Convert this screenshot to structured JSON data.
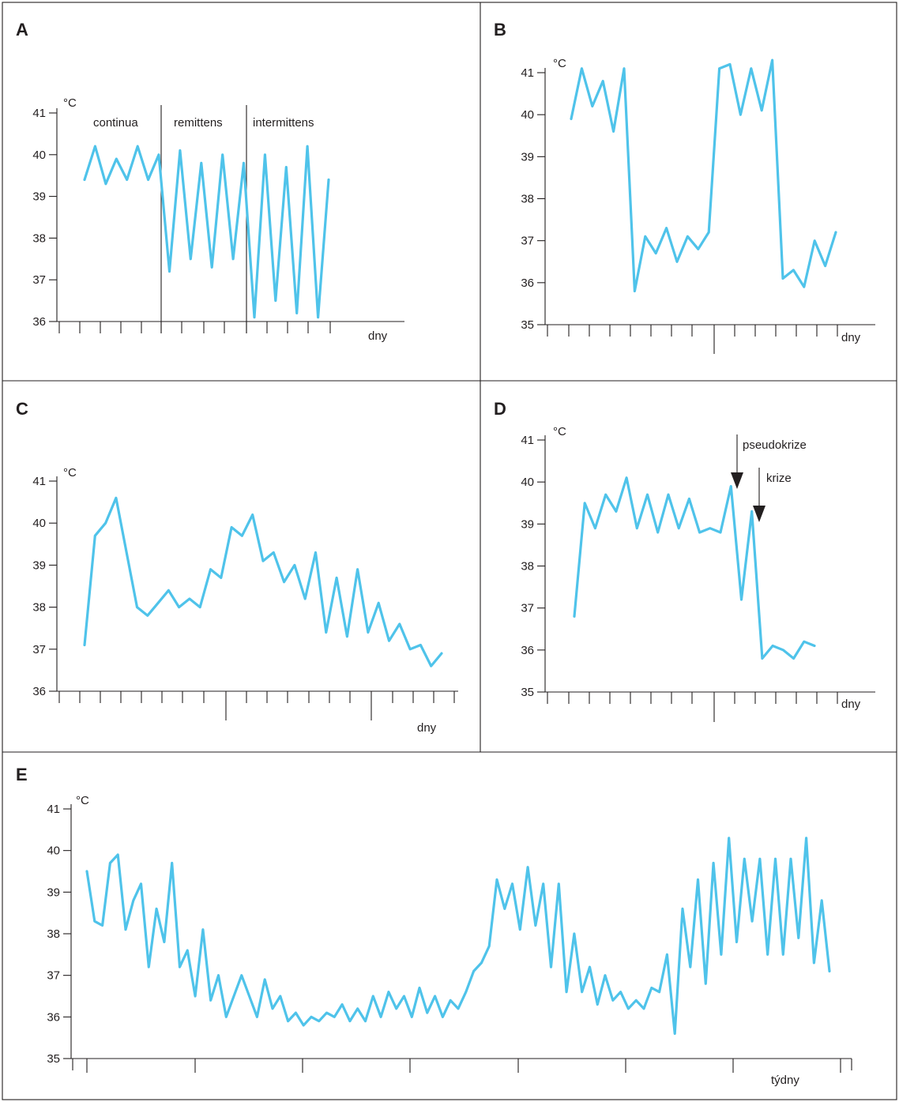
{
  "chart_data": [
    {
      "panel": "A",
      "type": "line",
      "ylabel": "°C",
      "xlabel": "dny",
      "ylim": [
        36,
        41
      ],
      "yticks": [
        "36",
        "37",
        "38",
        "39",
        "40",
        "41"
      ],
      "phase_labels": [
        "continua",
        "remittens",
        "intermittens"
      ],
      "series": [
        {
          "values": [
            39.4,
            40.2,
            39.3,
            39.9,
            39.4,
            40.2,
            39.4,
            40.0,
            37.2,
            40.1,
            37.5,
            39.8,
            37.3,
            40.0,
            37.5,
            39.8,
            36.1,
            40.0,
            36.5,
            39.7,
            36.2,
            40.2,
            36.1,
            39.4
          ]
        }
      ]
    },
    {
      "panel": "B",
      "type": "line",
      "ylabel": "°C",
      "xlabel": "dny",
      "ylim": [
        35,
        41
      ],
      "yticks": [
        "35",
        "36",
        "37",
        "38",
        "39",
        "40",
        "41"
      ],
      "series": [
        {
          "values": [
            39.9,
            41.1,
            40.2,
            40.8,
            39.6,
            41.1,
            35.8,
            37.1,
            36.7,
            37.3,
            36.5,
            37.1,
            36.8,
            37.2,
            41.1,
            41.2,
            40.0,
            41.1,
            40.1,
            41.3,
            36.1,
            36.3,
            35.9,
            37.0,
            36.4,
            37.2
          ]
        }
      ]
    },
    {
      "panel": "C",
      "type": "line",
      "ylabel": "°C",
      "xlabel": "dny",
      "ylim": [
        36,
        41
      ],
      "yticks": [
        "36",
        "37",
        "38",
        "39",
        "40",
        "41"
      ],
      "series": [
        {
          "values": [
            37.1,
            39.7,
            40.0,
            40.6,
            39.3,
            38.0,
            37.8,
            38.1,
            38.4,
            38.0,
            38.2,
            38.0,
            38.9,
            38.7,
            39.9,
            39.7,
            40.2,
            39.1,
            39.3,
            38.6,
            39.0,
            38.2,
            39.3,
            37.4,
            38.7,
            37.3,
            38.9,
            37.4,
            38.1,
            37.2,
            37.6,
            37.0,
            37.1,
            36.6,
            36.9
          ]
        }
      ]
    },
    {
      "panel": "D",
      "type": "line",
      "ylabel": "°C",
      "xlabel": "dny",
      "ylim": [
        35,
        41
      ],
      "yticks": [
        "35",
        "36",
        "37",
        "38",
        "39",
        "40",
        "41"
      ],
      "annotations": [
        "pseudokrize",
        "krize"
      ],
      "series": [
        {
          "values": [
            36.8,
            39.5,
            38.9,
            39.7,
            39.3,
            40.1,
            38.9,
            39.7,
            38.8,
            39.7,
            38.9,
            39.6,
            38.8,
            38.9,
            38.8,
            39.9,
            37.2,
            39.3,
            35.8,
            36.1,
            36.0,
            35.8,
            36.2,
            36.1
          ]
        }
      ]
    },
    {
      "panel": "E",
      "type": "line",
      "ylabel": "°C",
      "xlabel": "týdny",
      "ylim": [
        35,
        41
      ],
      "yticks": [
        "35",
        "36",
        "37",
        "38",
        "39",
        "40",
        "41"
      ],
      "series": [
        {
          "values": [
            39.5,
            38.3,
            38.2,
            39.7,
            39.9,
            38.1,
            38.8,
            39.2,
            37.2,
            38.6,
            37.8,
            39.7,
            37.2,
            37.6,
            36.5,
            38.1,
            36.4,
            37.0,
            36.0,
            36.5,
            37.0,
            36.5,
            36.0,
            36.9,
            36.2,
            36.5,
            35.9,
            36.1,
            35.8,
            36.0,
            35.9,
            36.1,
            36.0,
            36.3,
            35.9,
            36.2,
            35.9,
            36.5,
            36.0,
            36.6,
            36.2,
            36.5,
            36.0,
            36.7,
            36.1,
            36.5,
            36.0,
            36.4,
            36.2,
            36.6,
            37.1,
            37.3,
            37.7,
            39.3,
            38.6,
            39.2,
            38.1,
            39.6,
            38.2,
            39.2,
            37.2,
            39.2,
            36.6,
            38.0,
            36.6,
            37.2,
            36.3,
            37.0,
            36.4,
            36.6,
            36.2,
            36.4,
            36.2,
            36.7,
            36.6,
            37.5,
            35.6,
            38.6,
            37.2,
            39.3,
            36.8,
            39.7,
            37.5,
            40.3,
            37.8,
            39.8,
            38.3,
            39.8,
            37.5,
            39.8,
            37.5,
            39.8,
            37.9,
            40.3,
            37.3,
            38.8,
            37.1
          ]
        }
      ]
    }
  ]
}
